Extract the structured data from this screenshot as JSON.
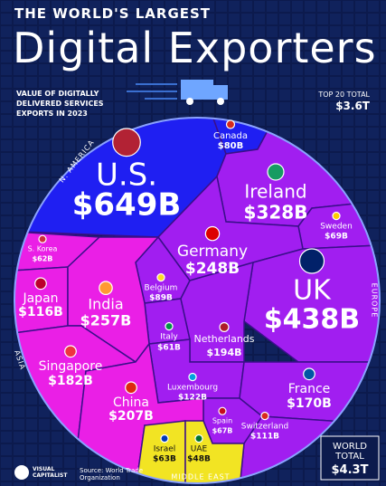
{
  "header": {
    "kicker": "THE WORLD'S LARGEST",
    "title": "Digital Exporters",
    "subtitle": "VALUE OF DIGITALLY DELIVERED SERVICES EXPORTS IN 2023",
    "top20_label": "TOP 20 TOTAL",
    "top20_value": "$3.6T"
  },
  "chart_data": {
    "type": "voronoi",
    "series": [
      {
        "name": "N. AMERICA",
        "color": "#1f1ff2",
        "categories": [
          "U.S.",
          "Canada"
        ],
        "values": [
          649,
          80
        ],
        "value_labels": [
          "$649B",
          "$80B"
        ]
      },
      {
        "name": "EUROPE",
        "color": "#a11ef0",
        "categories": [
          "Ireland",
          "Sweden",
          "Germany",
          "UK",
          "Belgium",
          "Italy",
          "Netherlands",
          "Luxembourg",
          "France",
          "Spain",
          "Switzerland"
        ],
        "values": [
          328,
          69,
          248,
          438,
          89,
          61,
          194,
          122,
          170,
          67,
          111
        ],
        "value_labels": [
          "$328B",
          "$69B",
          "$248B",
          "$438B",
          "$89B",
          "$61B",
          "$194B",
          "$122B",
          "$170B",
          "$67B",
          "$111B"
        ]
      },
      {
        "name": "ASIA",
        "color": "#ea1fe6",
        "categories": [
          "S. Korea",
          "Japan",
          "India",
          "Singapore",
          "China"
        ],
        "values": [
          62,
          116,
          257,
          182,
          207
        ],
        "value_labels": [
          "$62B",
          "$116B",
          "$257B",
          "$182B",
          "$207B"
        ]
      },
      {
        "name": "MIDDLE EAST",
        "color": "#f2e423",
        "categories": [
          "Israel",
          "UAE"
        ],
        "values": [
          63,
          48
        ],
        "value_labels": [
          "$63B",
          "$48B"
        ]
      }
    ]
  },
  "world_total": {
    "label": "WORLD TOTAL",
    "value": "$4.3T"
  },
  "footer": {
    "brand": "VISUAL CAPITALIST",
    "source": "Source: World Trade Organization"
  }
}
